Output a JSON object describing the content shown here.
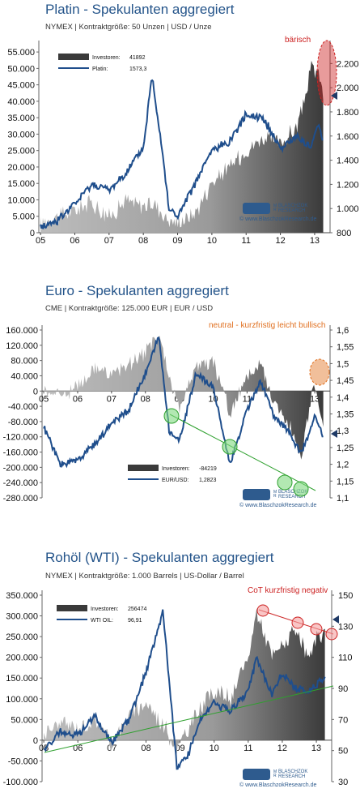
{
  "colors": {
    "title": "#24548a",
    "price_line": "#1f4e8c",
    "area_dark": "#3a3a3a",
    "area_light": "#bdbdbd",
    "annotation_red": "#cc2222",
    "annotation_orange": "#e07020",
    "highlight_green": "#7ed87e",
    "trend_green": "#2ea02e"
  },
  "watermark": {
    "logo_letters": [
      "M",
      "R",
      "BLASCHZOK",
      "RESEARCH"
    ],
    "url": "© www.BlaschzokResearch.de"
  },
  "charts": [
    {
      "title": "Platin - Spekulanten aggregiert",
      "subtitle": "NYMEX  |  Kontraktgröße: 50 Unzen  |  USD / Unze",
      "annotation": "bärisch",
      "legend": {
        "series1_label": "Investoren:",
        "series1_value": "41892",
        "series2_label": "Platin:",
        "series2_value": "1573,3"
      }
    },
    {
      "title": "Euro - Spekulanten aggregiert",
      "subtitle": "CME  |  Kontraktgröße: 125.000 EUR  |  EUR / USD",
      "annotation": "neutral - kurzfristig leicht bullisch",
      "legend": {
        "series1_label": "Investoren:",
        "series1_value": "-84219",
        "series2_label": "EUR/USD:",
        "series2_value": "1,2823"
      }
    },
    {
      "title": "Rohöl (WTI) - Spekulanten aggregiert",
      "subtitle": "NYMEX  |  Kontraktgröße: 1.000 Barrels  |  US-Dollar / Barrel",
      "annotation": "CoT kurzfristig negativ",
      "legend": {
        "series1_label": "Investoren:",
        "series1_value": "256474",
        "series2_label": "WTI OIL:",
        "series2_value": "96,91"
      }
    }
  ],
  "chart_data": [
    {
      "type": "area",
      "x_ticks": [
        "05",
        "06",
        "07",
        "08",
        "09",
        "10",
        "11",
        "12",
        "13"
      ],
      "y_left_ticks": [
        "0",
        "5.000",
        "10.000",
        "15.000",
        "20.000",
        "25.000",
        "30.000",
        "35.000",
        "40.000",
        "45.000",
        "50.000",
        "55.000"
      ],
      "y_right_ticks": [
        "800",
        "1.000",
        "1.200",
        "1.400",
        "1.600",
        "1.800",
        "2.000",
        "2.200"
      ],
      "ylim_left": [
        0,
        57000
      ],
      "ylim_right": [
        800,
        2350
      ],
      "x": [
        2005.0,
        2005.5,
        2006.0,
        2006.5,
        2007.0,
        2007.5,
        2008.0,
        2008.25,
        2008.5,
        2008.75,
        2009.0,
        2009.5,
        2010.0,
        2010.5,
        2011.0,
        2011.5,
        2012.0,
        2012.5,
        2012.9,
        2013.1,
        2013.25
      ],
      "series": [
        {
          "name": "Investoren",
          "axis": "left",
          "values": [
            3000,
            5000,
            7000,
            9000,
            5000,
            10000,
            8000,
            9000,
            7000,
            4000,
            3000,
            6000,
            15000,
            20000,
            25000,
            29000,
            27000,
            32000,
            50000,
            49000,
            41892
          ]
        },
        {
          "name": "Platin",
          "axis": "right",
          "values": [
            850,
            900,
            1040,
            1200,
            1150,
            1300,
            1500,
            2100,
            1600,
            1000,
            930,
            1200,
            1480,
            1550,
            1780,
            1750,
            1500,
            1600,
            1500,
            1700,
            1573
          ]
        }
      ]
    },
    {
      "type": "area",
      "x_ticks": [
        "05",
        "06",
        "07",
        "08",
        "09",
        "10",
        "11",
        "12",
        "13"
      ],
      "y_left_ticks": [
        "160.000",
        "120.000",
        "80.000",
        "40.000",
        "0",
        "-40.000",
        "-80.000",
        "-120.000",
        "-160.000",
        "-200.000",
        "-240.000",
        "-280.000"
      ],
      "y_right_ticks": [
        "1,6",
        "1,55",
        "1,5",
        "1,45",
        "1,4",
        "1,35",
        "1,3",
        "1,25",
        "1,2",
        "1,15",
        "1,1"
      ],
      "ylim_left": [
        -280000,
        160000
      ],
      "ylim_right": [
        1.1,
        1.6
      ],
      "x": [
        2005.0,
        2005.5,
        2006.0,
        2006.5,
        2007.0,
        2007.5,
        2008.0,
        2008.4,
        2008.7,
        2009.0,
        2009.5,
        2010.0,
        2010.5,
        2011.0,
        2011.4,
        2011.8,
        2012.2,
        2012.6,
        2013.0,
        2013.25
      ],
      "series": [
        {
          "name": "Investoren",
          "axis": "left",
          "values": [
            5000,
            -10000,
            10000,
            60000,
            40000,
            70000,
            100000,
            150000,
            30000,
            -40000,
            60000,
            80000,
            -60000,
            40000,
            70000,
            -30000,
            -80000,
            -180000,
            30000,
            -84219
          ]
        },
        {
          "name": "EUR/USD",
          "axis": "right",
          "values": [
            1.31,
            1.2,
            1.21,
            1.26,
            1.32,
            1.36,
            1.47,
            1.58,
            1.3,
            1.27,
            1.47,
            1.43,
            1.2,
            1.36,
            1.45,
            1.34,
            1.3,
            1.23,
            1.34,
            1.2823
          ]
        }
      ]
    },
    {
      "type": "area",
      "x_ticks": [
        "05",
        "06",
        "07",
        "08",
        "09",
        "10",
        "11",
        "12",
        "13"
      ],
      "y_left_ticks": [
        "350.000",
        "300.000",
        "250.000",
        "200.000",
        "150.000",
        "100.000",
        "50.000",
        "0",
        "-50.000",
        "-100.000"
      ],
      "y_right_ticks": [
        "150",
        "130",
        "110",
        "90",
        "70",
        "50",
        "30"
      ],
      "ylim_left": [
        -100000,
        350000
      ],
      "ylim_right": [
        30,
        150
      ],
      "x": [
        2005.0,
        2005.5,
        2006.0,
        2006.5,
        2007.0,
        2007.5,
        2008.0,
        2008.5,
        2008.9,
        2009.2,
        2009.6,
        2010.0,
        2010.5,
        2011.0,
        2011.25,
        2011.7,
        2012.0,
        2012.4,
        2012.8,
        2013.0,
        2013.25
      ],
      "series": [
        {
          "name": "Investoren",
          "axis": "left",
          "values": [
            20000,
            40000,
            30000,
            50000,
            -10000,
            60000,
            90000,
            40000,
            -20000,
            20000,
            80000,
            120000,
            100000,
            200000,
            310000,
            200000,
            230000,
            260000,
            200000,
            240000,
            256474
          ]
        },
        {
          "name": "WTI OIL",
          "axis": "right",
          "values": [
            50,
            62,
            60,
            72,
            55,
            70,
            100,
            140,
            40,
            45,
            70,
            80,
            76,
            88,
            110,
            85,
            100,
            90,
            88,
            92,
            96.91
          ]
        }
      ]
    }
  ]
}
